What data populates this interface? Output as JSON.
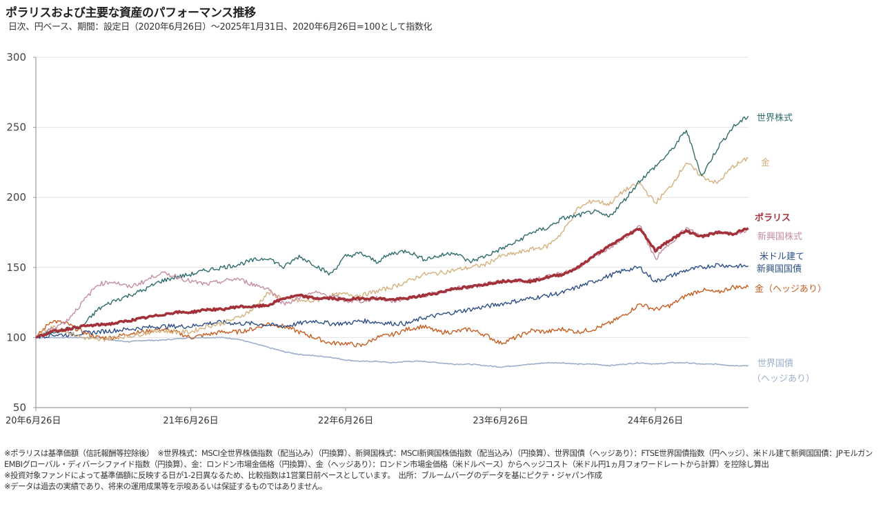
{
  "header": {
    "title": "ポラリスおよび主要な資産のパフォーマンス推移",
    "subtitle": "日次、円ベース、期間：設定日（2020年6月26日）〜2025年1月31日、2020年6月26日=100として指数化"
  },
  "chart_data": {
    "type": "line",
    "title": "ポラリスおよび主要な資産のパフォーマンス推移",
    "subtitle": "日次、円ベース、期間：設定日（2020年6月26日）〜2025年1月31日、2020年6月26日=100として指数化",
    "xlabel": "",
    "ylabel": "",
    "x_unit": "years since 2020-06-26",
    "xlim": [
      0,
      4.6
    ],
    "ylim": [
      50,
      300
    ],
    "yticks": [
      50,
      100,
      150,
      200,
      250,
      300
    ],
    "ytick_labels": [
      "50",
      "100",
      "150",
      "200",
      "250",
      "300"
    ],
    "xticks": [
      0,
      1,
      2,
      3,
      4
    ],
    "xtick_labels": [
      "20年6月26日",
      "21年6月26日",
      "22年6月26日",
      "23年6月26日",
      "24年6月26日"
    ],
    "grid": true,
    "legend_placement": "right (inline labels at line ends)",
    "x": [
      0,
      0.1,
      0.2,
      0.3,
      0.4,
      0.5,
      0.6,
      0.7,
      0.8,
      0.9,
      1.0,
      1.1,
      1.2,
      1.3,
      1.4,
      1.5,
      1.6,
      1.7,
      1.8,
      1.9,
      2.0,
      2.1,
      2.2,
      2.3,
      2.4,
      2.5,
      2.6,
      2.7,
      2.8,
      2.9,
      3.0,
      3.1,
      3.2,
      3.3,
      3.4,
      3.5,
      3.6,
      3.7,
      3.8,
      3.9,
      4.0,
      4.1,
      4.2,
      4.3,
      4.4,
      4.5,
      4.6
    ],
    "series": [
      {
        "name": "世界株式",
        "color": "#2e6b6a",
        "width": 1.4,
        "values": [
          100,
          104,
          106,
          108,
          120,
          126,
          130,
          134,
          140,
          143,
          145,
          148,
          150,
          152,
          155,
          157,
          150,
          158,
          152,
          145,
          158,
          160,
          154,
          160,
          162,
          156,
          158,
          161,
          154,
          158,
          163,
          168,
          175,
          178,
          185,
          187,
          190,
          186,
          198,
          212,
          222,
          233,
          248,
          215,
          235,
          250,
          258
        ]
      },
      {
        "name": "金",
        "color": "#d4b07e",
        "width": 1.4,
        "values": [
          100,
          108,
          104,
          100,
          98,
          100,
          101,
          103,
          105,
          104,
          104,
          108,
          110,
          114,
          120,
          132,
          128,
          126,
          126,
          130,
          131,
          130,
          133,
          136,
          140,
          145,
          146,
          148,
          150,
          152,
          158,
          160,
          163,
          165,
          175,
          192,
          198,
          195,
          205,
          210,
          196,
          208,
          225,
          215,
          210,
          222,
          228
        ]
      },
      {
        "name": "ポラリス",
        "color": "#a3313a",
        "width": 3.6,
        "values": [
          100,
          104,
          106,
          108,
          109,
          110,
          112,
          114,
          116,
          118,
          118,
          120,
          120,
          122,
          122,
          123,
          128,
          130,
          128,
          128,
          127,
          128,
          128,
          127,
          128,
          130,
          132,
          135,
          136,
          138,
          140,
          141,
          140,
          143,
          145,
          150,
          158,
          165,
          172,
          178,
          162,
          170,
          176,
          172,
          175,
          174,
          178
        ]
      },
      {
        "name": "新興国株式",
        "color": "#c48ea0",
        "width": 1.4,
        "values": [
          100,
          106,
          112,
          125,
          138,
          140,
          136,
          140,
          146,
          144,
          140,
          138,
          140,
          142,
          138,
          135,
          124,
          128,
          132,
          130,
          126,
          126,
          128,
          126,
          128,
          130,
          132,
          135,
          136,
          138,
          140,
          140,
          141,
          143,
          146,
          150,
          157,
          164,
          171,
          180,
          156,
          168,
          178,
          172,
          176,
          174,
          177
        ]
      },
      {
        "name": "米ドル建て新興国国債",
        "color": "#2d4f86",
        "width": 1.4,
        "values": [
          100,
          102,
          102,
          103,
          104,
          105,
          106,
          107,
          108,
          108,
          108,
          110,
          111,
          110,
          110,
          109,
          108,
          110,
          112,
          110,
          110,
          112,
          111,
          110,
          110,
          114,
          116,
          118,
          120,
          122,
          124,
          126,
          128,
          130,
          132,
          136,
          140,
          144,
          148,
          150,
          140,
          144,
          148,
          150,
          152,
          151,
          151
        ]
      },
      {
        "name": "金（ヘッジあり）",
        "color": "#c65d1f",
        "width": 1.4,
        "values": [
          100,
          112,
          110,
          104,
          100,
          100,
          103,
          104,
          106,
          104,
          100,
          102,
          104,
          104,
          106,
          110,
          108,
          104,
          100,
          96,
          96,
          94,
          100,
          102,
          106,
          108,
          104,
          104,
          106,
          102,
          96,
          100,
          105,
          104,
          106,
          104,
          106,
          110,
          116,
          124,
          120,
          123,
          130,
          134,
          132,
          136,
          136
        ]
      },
      {
        "name": "世界国債（ヘッジあり）",
        "color": "#9caec9",
        "width": 1.6,
        "values": [
          100,
          100,
          100,
          100,
          100,
          98,
          97,
          98,
          98,
          99,
          100,
          100,
          100,
          99,
          96,
          93,
          90,
          88,
          87,
          86,
          84,
          83,
          83,
          82,
          83,
          83,
          82,
          81,
          81,
          80,
          79,
          80,
          81,
          82,
          82,
          81,
          81,
          80,
          81,
          82,
          81,
          82,
          82,
          81,
          81,
          80,
          80
        ]
      }
    ]
  },
  "legend": {
    "labels": [
      {
        "key": "world_equity",
        "lines": [
          "世界株式"
        ],
        "color": "#2e6b6a",
        "bold": false
      },
      {
        "key": "gold",
        "lines": [
          "金"
        ],
        "color": "#d4b07e",
        "bold": false
      },
      {
        "key": "polaris",
        "lines": [
          "ポラリス"
        ],
        "color": "#a3313a",
        "bold": true
      },
      {
        "key": "em_equity",
        "lines": [
          "新興国株式"
        ],
        "color": "#c48ea0",
        "bold": false
      },
      {
        "key": "em_bond",
        "lines": [
          "米ドル建て",
          "新興国国債"
        ],
        "color": "#2d4f86",
        "bold": false
      },
      {
        "key": "gold_hedged",
        "lines": [
          "金（ヘッジあり）"
        ],
        "color": "#c65d1f",
        "bold": false
      },
      {
        "key": "world_bond",
        "lines": [
          "世界国債",
          "（ヘッジあり）"
        ],
        "color": "#9caec9",
        "bold": false
      }
    ]
  },
  "notes": [
    "※ポラリスは基準価額（信託報酬等控除後）　※世界株式：MSCI全世界株価指数（配当込み）（円換算）、新興国株式：MSCI新興国株価指数（配当込み）（円換算）、世界国債（ヘッジあり）：FTSE世界国債指数（円ヘッジ）、米ドル建て新興国国債：JPモルガンEMBIグローバル・ディバーシファイド指数（円換算）、金：ロンドン市場金価格（円換算）、金（ヘッジあり）：ロンドン市場金価格（米ドルベース）からヘッジコスト（米ドル円1ヵ月フォワードレートから計算）を控除し算出",
    "※投資対象ファンドによって基準価額に反映する日が1-2日異なるため、比較指数は1営業日前ベースとしています。　出所：ブルームバーグのデータを基にピクテ・ジャパン作成",
    "※データは過去の実績であり、将来の運用成果等を示唆あるいは保証するものではありません。"
  ]
}
